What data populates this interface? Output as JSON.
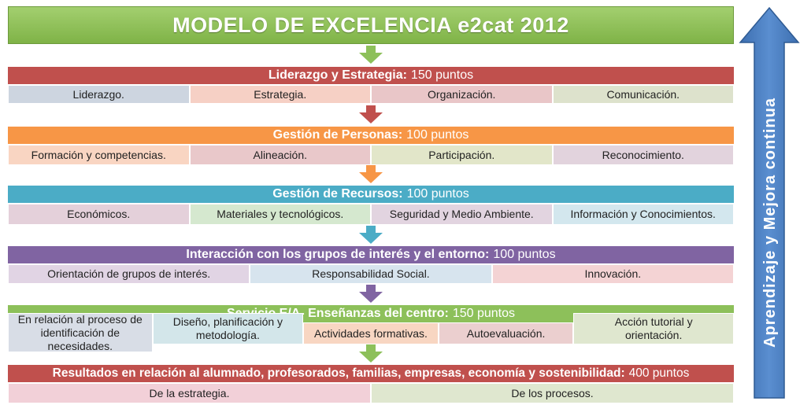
{
  "title": "MODELO DE EXCELENCIA e2cat 2012",
  "side_label": "Aprendizaje y Mejora continua",
  "colors": {
    "green": "#8dc05a",
    "red": "#c0504d",
    "orange": "#f79646",
    "teal": "#4bacc6",
    "purple": "#8064a2",
    "arrow_blue": "#4f81bd"
  },
  "sections": [
    {
      "name": "Liderazgo y Estrategia:",
      "points": "150 puntos",
      "color": "#c0504d",
      "items": [
        "Liderazgo.",
        "Estrategia.",
        "Organización.",
        "Comunicación."
      ],
      "item_colors": [
        "#cdd5e0",
        "#f6d0c5",
        "#e9c6c8",
        "#dde2cc"
      ]
    },
    {
      "name": "Gestión de Personas:",
      "points": "100 puntos",
      "color": "#f79646",
      "items": [
        "Formación y competencias.",
        "Alineación.",
        "Participación.",
        "Reconocimiento."
      ],
      "item_colors": [
        "#f9d5c2",
        "#e9c8ca",
        "#e2e6c9",
        "#e2d3dd"
      ]
    },
    {
      "name": "Gestión de Recursos:",
      "points": "100 puntos",
      "color": "#4bacc6",
      "items": [
        "Económicos.",
        "Materiales y tecnológicos.",
        "Seguridad y Medio Ambiente.",
        "Información y Conocimientos."
      ],
      "item_colors": [
        "#e4d0da",
        "#d5e8cf",
        "#e2d4e0",
        "#d3e7ee"
      ]
    },
    {
      "name": "Interacción con los grupos de interés y el entorno:",
      "points": "100 puntos",
      "color": "#8064a2",
      "items": [
        "Orientación de grupos de interés.",
        "Responsabilidad Social.",
        "Innovación."
      ],
      "item_colors": [
        "#e1d4e4",
        "#d7e4ee",
        "#f4d3d4"
      ]
    },
    {
      "name": "Servicio E/A- Enseñanzas del centro:",
      "points": "150 puntos",
      "color": "#8dc05a",
      "items": [
        "En relación al proceso de identificación de necesidades.",
        "Diseño, planificación y metodología.",
        "Actividades formativas.",
        "Autoevaluación.",
        "Acción tutorial y orientación."
      ],
      "item_colors": [
        "#d8dde6",
        "#d3e6ea",
        "#f8d6c2",
        "#ebcfcf",
        "#dfe7cf"
      ]
    },
    {
      "name": "Resultados en relación al alumnado, profesorados, familias, empresas, economía y sostenibilidad:",
      "points": "400 puntos",
      "color": "#c0504d",
      "items": [
        "De la estrategia.",
        "De los procesos."
      ],
      "item_colors": [
        "#f2d0d8",
        "#dfe7cf"
      ]
    }
  ]
}
